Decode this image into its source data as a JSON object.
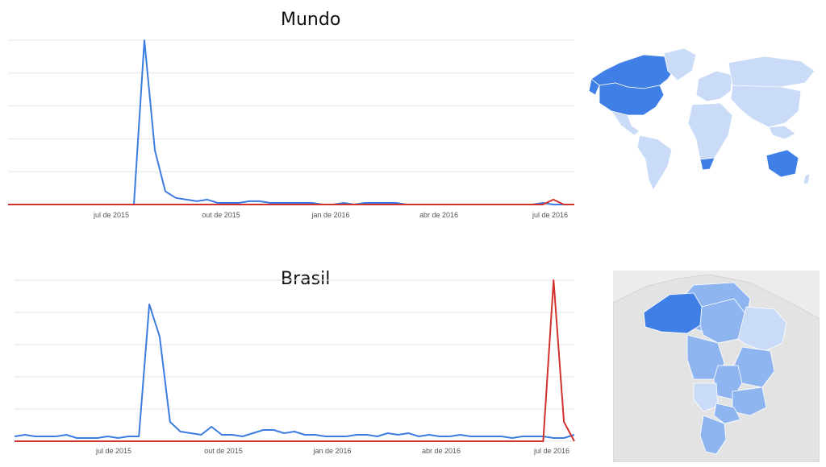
{
  "colors": {
    "series_blue": "#3b7ce0",
    "series_red": "#d2322d",
    "grid": "#e6e6e6",
    "map_dark": "#3f7fe6",
    "map_mid": "#8fb5f0",
    "map_light": "#c9dbf7",
    "map_land": "#ececec"
  },
  "chart_data": [
    {
      "type": "line",
      "title": "Mundo",
      "x_ticks": [
        "jul de 2015",
        "out de 2015",
        "jan de 2016",
        "abr de 2016",
        "jul de 2016"
      ],
      "x": [
        0,
        1,
        2,
        3,
        4,
        5,
        6,
        7,
        8,
        9,
        10,
        11,
        12,
        13,
        14,
        15,
        16,
        17,
        18,
        19,
        20,
        21,
        22,
        23,
        24,
        25,
        26,
        27,
        28,
        29,
        30,
        31,
        32,
        33,
        34,
        35,
        36,
        37,
        38,
        39,
        40,
        41,
        42,
        43,
        44,
        45,
        46,
        47,
        48,
        49,
        50,
        51,
        52,
        53,
        54
      ],
      "ylim": [
        0,
        100
      ],
      "grid": true,
      "series": [
        {
          "color_key": "series_blue",
          "values": [
            0,
            0,
            0,
            0,
            0,
            0,
            0,
            0,
            0,
            0,
            0,
            0,
            0,
            100,
            33,
            8,
            4,
            3,
            2,
            3,
            1,
            1,
            1,
            2,
            2,
            1,
            1,
            1,
            1,
            1,
            0,
            0,
            1,
            0,
            1,
            1,
            1,
            1,
            0,
            0,
            0,
            0,
            0,
            0,
            0,
            0,
            0,
            0,
            0,
            0,
            0,
            1,
            0,
            0,
            0
          ]
        },
        {
          "color_key": "series_red",
          "values": [
            0,
            0,
            0,
            0,
            0,
            0,
            0,
            0,
            0,
            0,
            0,
            0,
            0,
            0,
            0,
            0,
            0,
            0,
            0,
            0,
            0,
            0,
            0,
            0,
            0,
            0,
            0,
            0,
            0,
            0,
            0,
            0,
            0,
            0,
            0,
            0,
            0,
            0,
            0,
            0,
            0,
            0,
            0,
            0,
            0,
            0,
            0,
            0,
            0,
            0,
            0,
            0,
            3,
            0,
            0
          ]
        }
      ]
    },
    {
      "type": "line",
      "title": "Brasil",
      "x_ticks": [
        "jul de 2015",
        "out de 2015",
        "jan de 2016",
        "abr de 2016",
        "jul de 2016"
      ],
      "x": [
        0,
        1,
        2,
        3,
        4,
        5,
        6,
        7,
        8,
        9,
        10,
        11,
        12,
        13,
        14,
        15,
        16,
        17,
        18,
        19,
        20,
        21,
        22,
        23,
        24,
        25,
        26,
        27,
        28,
        29,
        30,
        31,
        32,
        33,
        34,
        35,
        36,
        37,
        38,
        39,
        40,
        41,
        42,
        43,
        44,
        45,
        46,
        47,
        48,
        49,
        50,
        51,
        52,
        53,
        54
      ],
      "ylim": [
        0,
        100
      ],
      "grid": true,
      "series": [
        {
          "color_key": "series_blue",
          "values": [
            3,
            4,
            3,
            3,
            3,
            4,
            2,
            2,
            2,
            3,
            2,
            3,
            3,
            85,
            65,
            12,
            6,
            5,
            4,
            9,
            4,
            4,
            3,
            5,
            7,
            7,
            5,
            6,
            4,
            4,
            3,
            3,
            3,
            4,
            4,
            3,
            5,
            4,
            5,
            3,
            4,
            3,
            3,
            4,
            3,
            3,
            3,
            3,
            2,
            3,
            3,
            3,
            2,
            2,
            4
          ]
        },
        {
          "color_key": "series_red",
          "values": [
            0,
            0,
            0,
            0,
            0,
            0,
            0,
            0,
            0,
            0,
            0,
            0,
            0,
            0,
            0,
            0,
            0,
            0,
            0,
            0,
            0,
            0,
            0,
            0,
            0,
            0,
            0,
            0,
            0,
            0,
            0,
            0,
            0,
            0,
            0,
            0,
            0,
            0,
            0,
            0,
            0,
            0,
            0,
            0,
            0,
            0,
            0,
            0,
            0,
            0,
            0,
            0,
            100,
            12,
            0
          ]
        }
      ]
    }
  ]
}
